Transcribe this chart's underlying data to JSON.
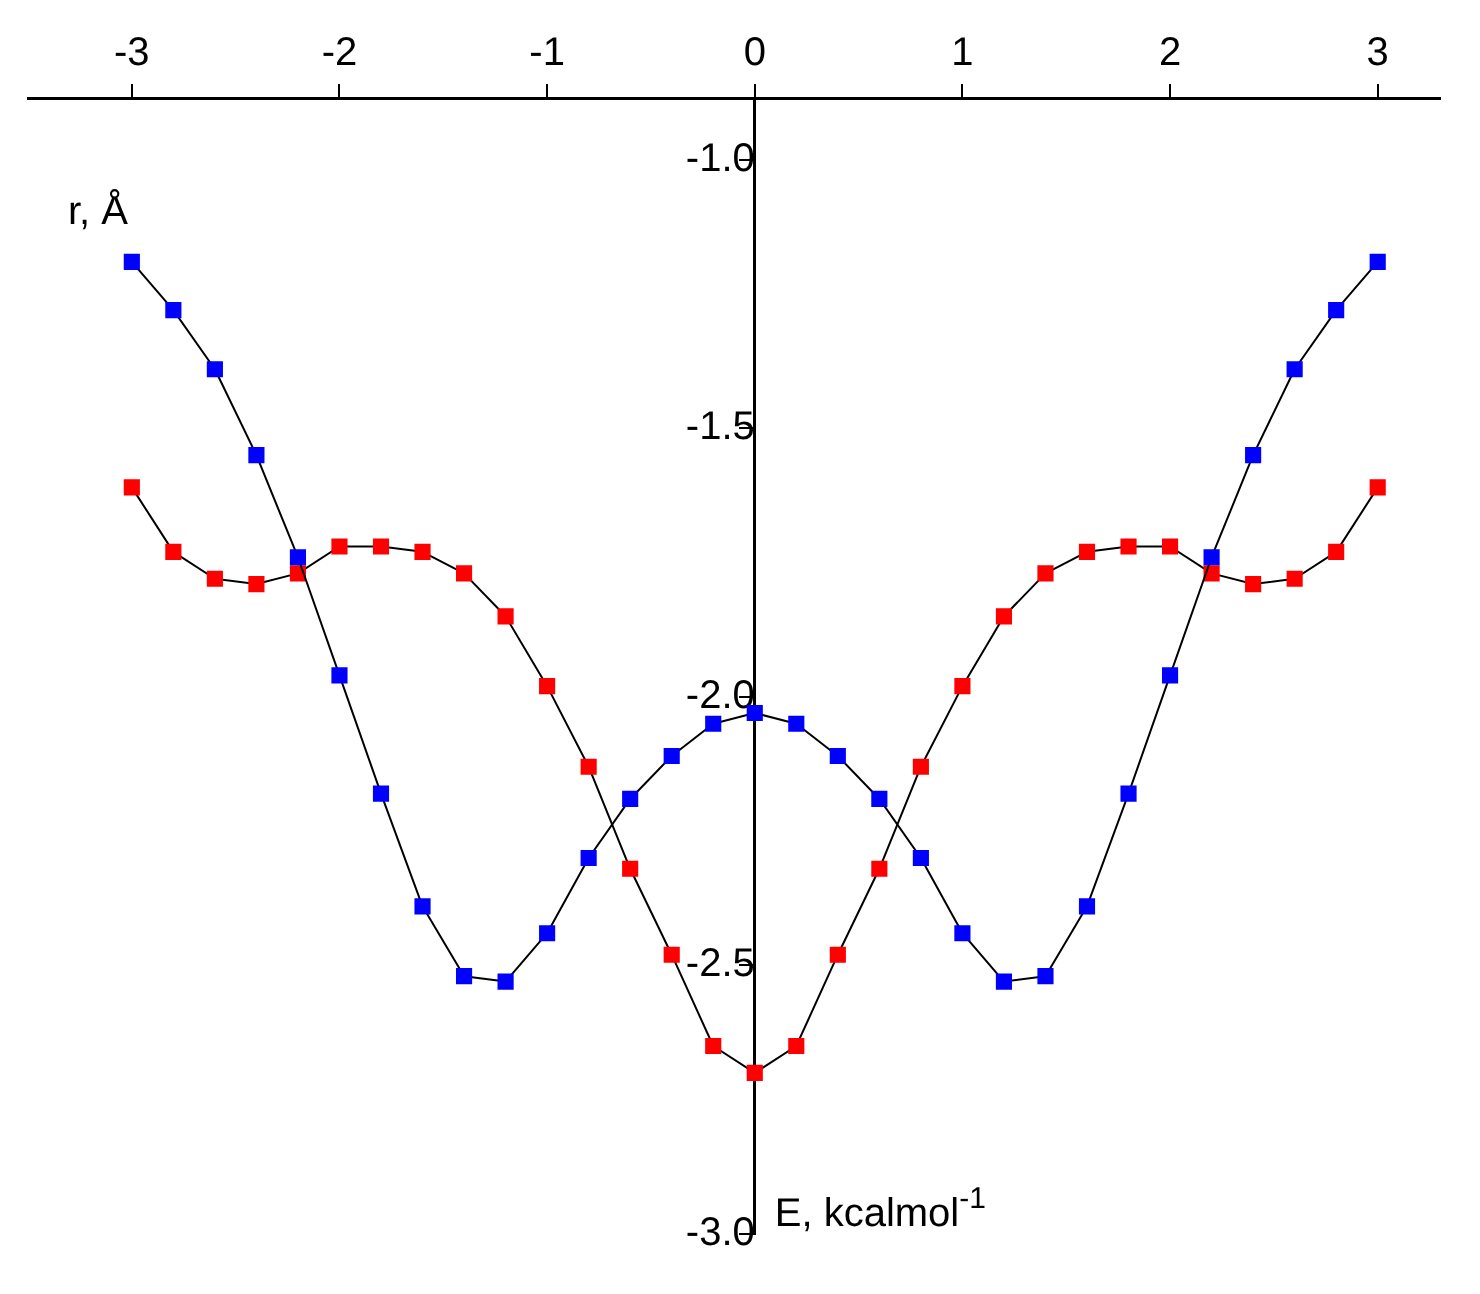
{
  "chart_data": {
    "type": "line",
    "xlabel": "E, kcalmol$^{-1}$",
    "ylabel": "r, Å",
    "x": [
      -3,
      -2.8,
      -2.6,
      -2.4,
      -2.2,
      -2,
      -1.8,
      -1.6,
      -1.4,
      -1.2,
      -1,
      -0.8,
      -0.6,
      -0.4,
      -0.2,
      0,
      0.2,
      0.4,
      0.6,
      0.8,
      1,
      1.2,
      1.4,
      1.6,
      1.8,
      2,
      2.2,
      2.4,
      2.6,
      2.8,
      3
    ],
    "series": [
      {
        "color": "#0000ff",
        "values": [
          -1.19,
          -1.28,
          -1.39,
          -1.55,
          -1.74,
          -1.96,
          -2.18,
          -2.39,
          -2.52,
          -2.53,
          -2.44,
          -2.3,
          -2.19,
          -2.11,
          -2.05,
          -2.03,
          -2.05,
          -2.11,
          -2.19,
          -2.3,
          -2.44,
          -2.53,
          -2.52,
          -2.39,
          -2.18,
          -1.96,
          -1.74,
          -1.55,
          -1.39,
          -1.28,
          -1.19
        ]
      },
      {
        "color": "#ff0000",
        "values": [
          -1.61,
          -1.73,
          -1.78,
          -1.79,
          -1.77,
          -1.72,
          -1.72,
          -1.73,
          -1.77,
          -1.85,
          -1.98,
          -2.13,
          -2.32,
          -2.48,
          -2.65,
          -2.7,
          -2.65,
          -2.48,
          -2.32,
          -2.13,
          -1.98,
          -1.85,
          -1.77,
          -1.73,
          -1.72,
          -1.72,
          -1.77,
          -1.79,
          -1.78,
          -1.73,
          -1.61
        ]
      }
    ],
    "xlim": [
      -3.5,
      3.3
    ],
    "ylim": [
      -3.0,
      -0.885
    ],
    "xticks": [
      -3,
      -2,
      -1,
      0,
      1,
      2,
      3
    ],
    "yticks": [
      {
        "value": -3,
        "label": "-3.0"
      },
      {
        "value": -2.5,
        "label": "-2.5"
      },
      {
        "value": -2,
        "label": "-2.0"
      },
      {
        "value": -1.5,
        "label": "-1.5"
      },
      {
        "value": -1,
        "label": "-1.0"
      }
    ],
    "grid": false,
    "legend": false,
    "marker": "square",
    "line_style": "solid"
  }
}
